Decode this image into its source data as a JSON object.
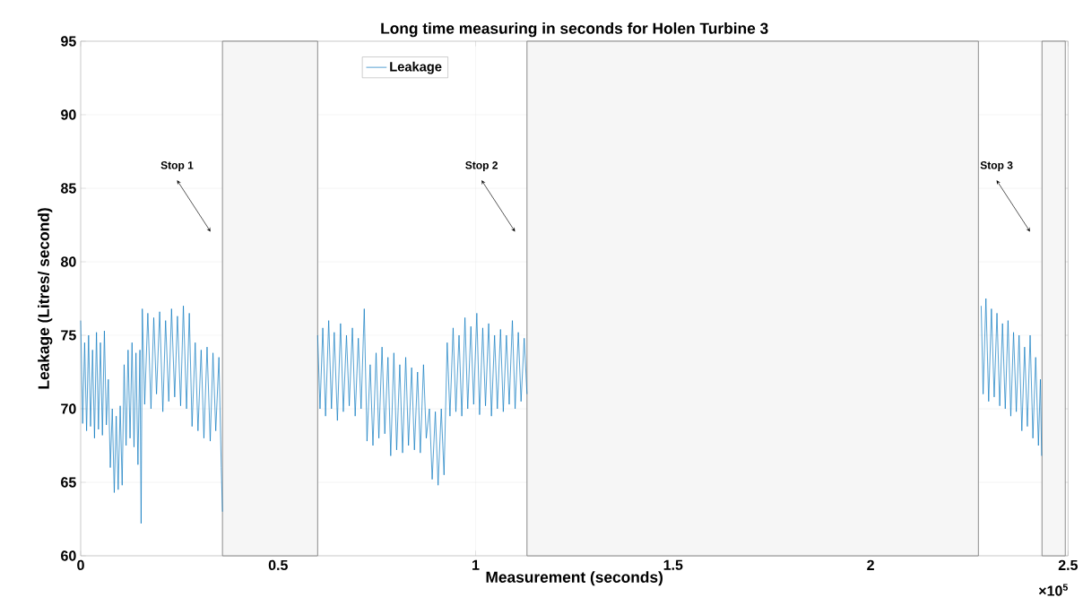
{
  "chart_data": {
    "type": "line",
    "title": "Long time measuring in seconds for Holen Turbine 3",
    "xlabel": "Measurement (seconds)",
    "ylabel": "Leakage (Litres/ second)",
    "xlim": [
      0,
      2.5
    ],
    "ylim": [
      60,
      95
    ],
    "xticks": [
      0,
      0.5,
      1,
      1.5,
      2,
      2.5
    ],
    "yticks": [
      60,
      65,
      70,
      75,
      80,
      85,
      90,
      95
    ],
    "grid": true,
    "legend": "top left",
    "marker": "none",
    "line_style": "solid",
    "series": [
      {
        "name": "Leakage",
        "color": "#0072bd",
        "x": [
          0,
          0.005,
          0.01,
          0.015,
          0.02,
          0.025,
          0.03,
          0.035,
          0.04,
          0.045,
          0.05,
          0.055,
          0.06,
          0.065,
          0.07,
          0.075,
          0.08,
          0.085,
          0.09,
          0.095,
          0.1,
          0.105,
          0.11,
          0.115,
          0.12,
          0.125,
          0.13,
          0.135,
          0.14,
          0.145,
          0.15,
          0.153,
          0.156,
          0.162,
          0.17,
          0.178,
          0.185,
          0.192,
          0.2,
          0.208,
          0.215,
          0.223,
          0.23,
          0.238,
          0.245,
          0.253,
          0.26,
          0.268,
          0.275,
          0.282,
          0.29,
          0.297,
          0.305,
          0.312,
          0.32,
          0.328,
          0.335,
          0.342,
          0.35,
          0.356,
          0.359,
          0.47,
          0.6,
          0.606,
          0.613,
          0.62,
          0.628,
          0.635,
          0.642,
          0.65,
          0.658,
          0.665,
          0.673,
          0.68,
          0.688,
          0.695,
          0.703,
          0.71,
          0.718,
          0.725,
          0.733,
          0.74,
          0.748,
          0.755,
          0.763,
          0.77,
          0.778,
          0.785,
          0.793,
          0.8,
          0.808,
          0.815,
          0.823,
          0.83,
          0.838,
          0.845,
          0.853,
          0.86,
          0.868,
          0.875,
          0.883,
          0.89,
          0.898,
          0.905,
          0.913,
          0.92,
          0.928,
          0.935,
          0.943,
          0.95,
          0.958,
          0.965,
          0.973,
          0.98,
          0.988,
          0.995,
          1.003,
          1.01,
          1.018,
          1.025,
          1.033,
          1.04,
          1.048,
          1.055,
          1.063,
          1.07,
          1.078,
          1.085,
          1.093,
          1.1,
          1.108,
          1.115,
          1.123,
          1.13,
          1.7,
          2.28,
          2.285,
          2.292,
          2.299,
          2.306,
          2.313,
          2.32,
          2.327,
          2.334,
          2.341,
          2.348,
          2.355,
          2.362,
          2.369,
          2.376,
          2.383,
          2.39,
          2.397,
          2.404,
          2.411,
          2.418,
          2.425,
          2.43,
          2.433
        ],
        "values": [
          76,
          69,
          74.5,
          68.5,
          75,
          68.8,
          74,
          68,
          75.2,
          68.6,
          74.5,
          68.2,
          75.3,
          68.9,
          72,
          66,
          70,
          64.3,
          69.5,
          64.5,
          70.2,
          64.8,
          73,
          67.5,
          74,
          68,
          74.5,
          67.4,
          73.8,
          66.2,
          74,
          62.2,
          76.8,
          70.3,
          76.5,
          70,
          76.2,
          71,
          76.6,
          69.8,
          76,
          70.5,
          76.8,
          70.8,
          76.3,
          70.2,
          77,
          70,
          76.5,
          68.8,
          74.5,
          68.5,
          74,
          68,
          74.2,
          67.8,
          73.8,
          68.5,
          73.5,
          66,
          63,
          null,
          75,
          70,
          75.5,
          69.5,
          76,
          70,
          75.2,
          69.2,
          75.8,
          69.8,
          75,
          70.2,
          75.5,
          69.5,
          74.8,
          70,
          76.8,
          67.8,
          73,
          67.5,
          73.8,
          68,
          74.2,
          68.3,
          73.5,
          66.8,
          73.8,
          67.2,
          73,
          67,
          73.5,
          67.5,
          72.8,
          67.2,
          72.5,
          67,
          73,
          68,
          70,
          65.2,
          69.8,
          64.8,
          70,
          65.5,
          74.5,
          69.5,
          75.5,
          69.8,
          75,
          69.5,
          76.2,
          70,
          75.6,
          70.3,
          76.5,
          69.6,
          75.5,
          70.2,
          75.8,
          69.5,
          75,
          70,
          75.4,
          69.8,
          75,
          70.3,
          76,
          70,
          75.2,
          70.5,
          74.8,
          71,
          null,
          77,
          71,
          77.5,
          70.5,
          76.8,
          70.8,
          76.5,
          70.2,
          75.8,
          70,
          76,
          69.5,
          75.2,
          69.8,
          75,
          68.5,
          74.2,
          68.8,
          75,
          68,
          73.5,
          67.5,
          72,
          66.8
        ]
      }
    ],
    "bands": [
      {
        "axis": "x",
        "from": 0.359,
        "to": 0.6,
        "color": "#707070"
      },
      {
        "axis": "x",
        "from": 1.13,
        "to": 2.273,
        "color": "#707070"
      },
      {
        "axis": "x",
        "from": 2.434,
        "to": 2.493,
        "color": "#707070"
      }
    ],
    "annotations": [
      "Stop 1",
      "Stop 2",
      "Stop 3",
      "×10$^{5}$"
    ]
  }
}
